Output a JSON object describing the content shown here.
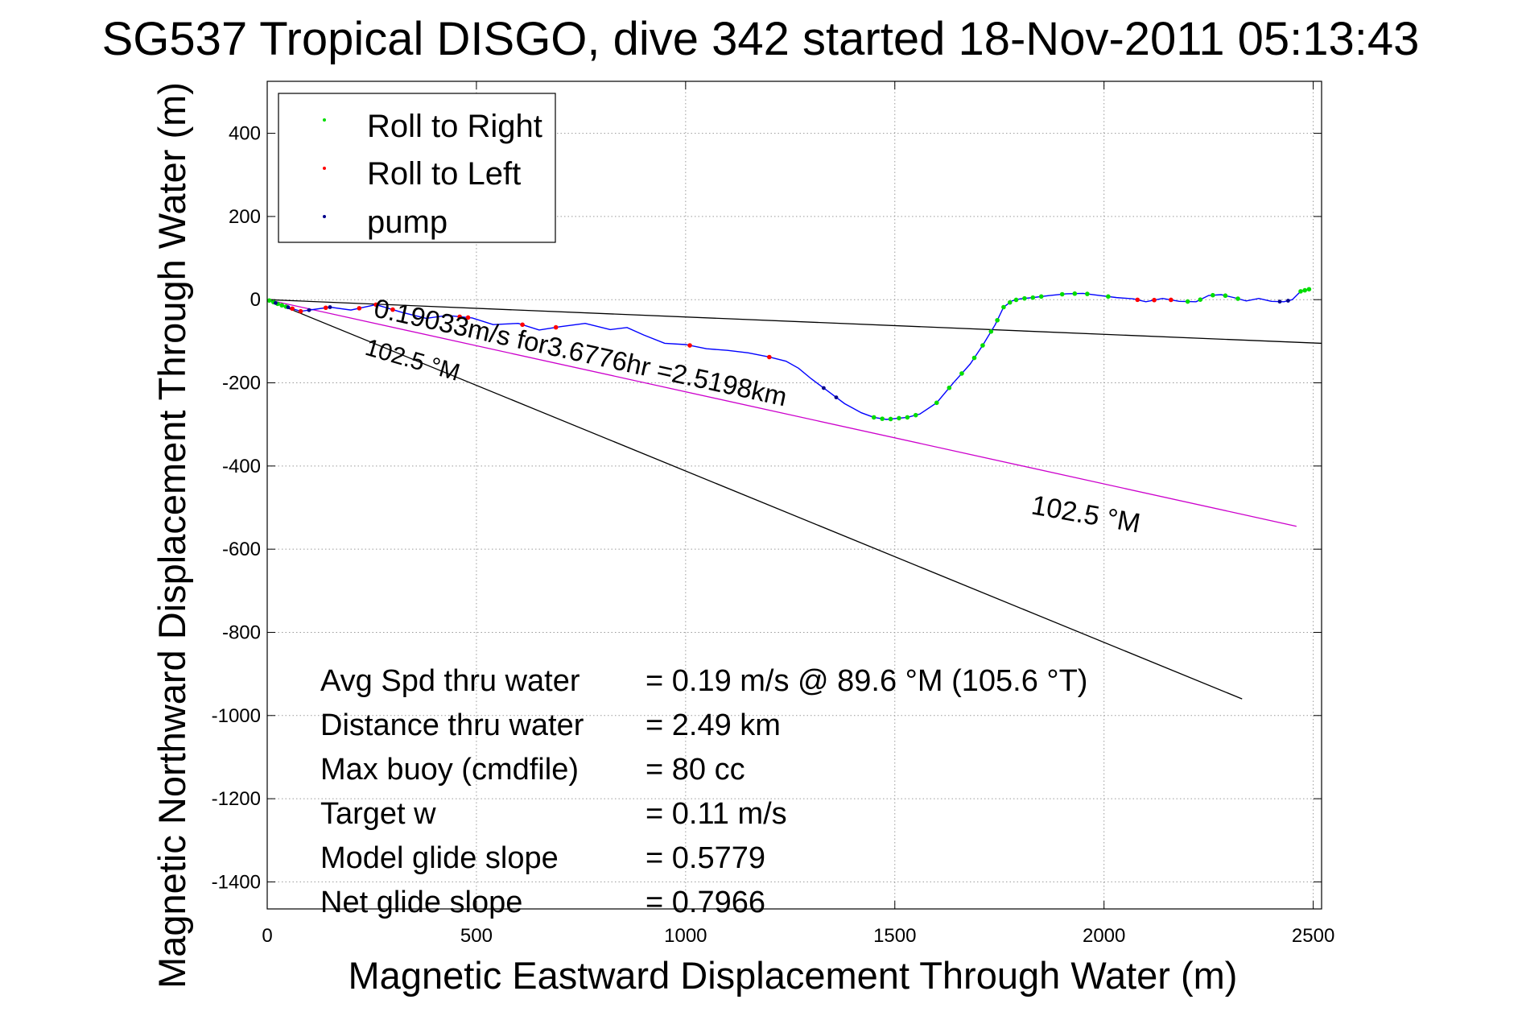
{
  "chart_data": {
    "type": "line",
    "title": "SG537 Tropical DISGO, dive 342 started 18-Nov-2011 05:13:43",
    "xlabel": "Magnetic Eastward Displacement Through Water (m)",
    "ylabel": "Magnetic Northward Displacement Through Water (m)",
    "xlim": [
      0,
      2520
    ],
    "ylim": [
      -1465,
      525
    ],
    "xticks": [
      0,
      500,
      1000,
      1500,
      2000,
      2500
    ],
    "yticks": [
      -1400,
      -1200,
      -1000,
      -800,
      -600,
      -400,
      -200,
      0,
      200,
      400
    ],
    "grid": true,
    "legend_position": "top-left",
    "legend": [
      {
        "label": "Roll to Right",
        "color": "#00dd00"
      },
      {
        "label": "Roll to Left",
        "color": "#ff0000"
      },
      {
        "label": "pump",
        "color": "#00008b"
      }
    ],
    "colors": {
      "track": "#0000ff",
      "roll_right": "#00dd00",
      "roll_left": "#ff0000",
      "pump": "#00008b",
      "heading_line": "#000000",
      "course_line": "#cc00cc"
    },
    "track": {
      "x": [
        0,
        30,
        80,
        150,
        200,
        260,
        320,
        380,
        430,
        490,
        540,
        600,
        650,
        700,
        760,
        820,
        860,
        900,
        950,
        1000,
        1050,
        1100,
        1150,
        1200,
        1240,
        1270,
        1300,
        1340,
        1380,
        1420,
        1450,
        1480,
        1500,
        1530,
        1560,
        1600,
        1640,
        1680,
        1710,
        1740,
        1760,
        1780,
        1800,
        1830,
        1870,
        1910,
        1950,
        1990,
        2030,
        2070,
        2100,
        2140,
        2180,
        2220,
        2250,
        2280,
        2310,
        2340,
        2370,
        2400,
        2430,
        2450,
        2470,
        2490
      ],
      "y": [
        0,
        -12,
        -28,
        -18,
        -25,
        -12,
        -30,
        -45,
        -38,
        -44,
        -60,
        -57,
        -73,
        -65,
        -57,
        -72,
        -67,
        -85,
        -105,
        -108,
        -118,
        -122,
        -128,
        -138,
        -148,
        -165,
        -190,
        -220,
        -250,
        -272,
        -283,
        -288,
        -286,
        -283,
        -275,
        -248,
        -200,
        -155,
        -110,
        -60,
        -18,
        -3,
        2,
        5,
        10,
        14,
        15,
        10,
        5,
        2,
        -5,
        3,
        -4,
        -5,
        10,
        12,
        5,
        -3,
        3,
        -4,
        -5,
        0,
        20,
        25
      ]
    },
    "roll_right_x": [
      5,
      15,
      25,
      35,
      45,
      1450,
      1470,
      1490,
      1510,
      1530,
      1550,
      1600,
      1630,
      1660,
      1690,
      1710,
      1730,
      1745,
      1760,
      1775,
      1790,
      1810,
      1830,
      1850,
      1900,
      1930,
      1960,
      2010,
      2200,
      2230,
      2260,
      2290,
      2320,
      2470,
      2480,
      2490
    ],
    "roll_left_x": [
      60,
      80,
      140,
      220,
      260,
      300,
      460,
      480,
      610,
      690,
      1010,
      1200,
      2080,
      2120,
      2160
    ],
    "pump_x": [
      20,
      50,
      100,
      150,
      1330,
      1360,
      2420,
      2440
    ],
    "heading_line_left": {
      "label": "102.5 °M",
      "x": [
        0,
        2330
      ],
      "y": [
        0,
        -960
      ]
    },
    "heading_line_right": {
      "label": "102.5 °M"
    },
    "course_line": {
      "label": "0.19033m/s for3.6776hr =2.5198km",
      "x": [
        0,
        2460
      ],
      "y": [
        0,
        -545
      ]
    },
    "upper_line": {
      "x": [
        0,
        2520
      ],
      "y": [
        0,
        -105
      ]
    },
    "stats": [
      {
        "label": "Avg Spd thru water",
        "value": "=  0.19 m/s @  89.6 °M (105.6 °T)"
      },
      {
        "label": "Distance thru water",
        "value": "=  2.49 km"
      },
      {
        "label": "Max buoy (cmdfile)",
        "value": "= 80 cc"
      },
      {
        "label": "Target w",
        "value": "= 0.11 m/s"
      },
      {
        "label": "Model glide slope",
        "value": "= 0.5779"
      },
      {
        "label": "Net glide slope",
        "value": "= 0.7966"
      }
    ]
  }
}
